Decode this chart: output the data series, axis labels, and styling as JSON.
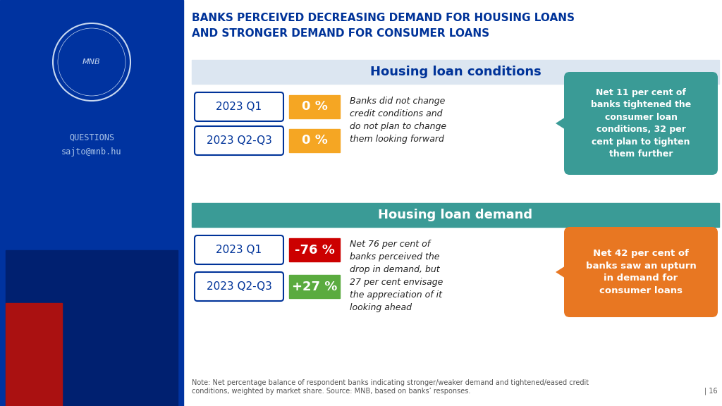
{
  "title_line1": "BANKS PERCEIVED DECREASING DEMAND FOR HOUSING LOANS",
  "title_line2": "AND STRONGER DEMAND FOR CONSUMER LOANS",
  "questions_label": "QUESTIONS",
  "email_label": "sajto@mnb.hu",
  "main_bg": "#ffffff",
  "section1_header": "Housing loan conditions",
  "section1_header_bg": "#dce6f1",
  "section1_header_color": "#003399",
  "section2_header": "Housing loan demand",
  "section2_header_bg": "#3a9b96",
  "section2_header_color": "#ffffff",
  "row1_label": "2023 Q1",
  "row2_label": "2023 Q2-Q3",
  "row3_label": "2023 Q1",
  "row4_label": "2023 Q2-Q3",
  "badge1_text": "0 %",
  "badge2_text": "0 %",
  "badge3_text": "-76 %",
  "badge4_text": "+27 %",
  "badge1_color": "#f5a623",
  "badge2_color": "#f5a623",
  "badge3_color": "#cc0000",
  "badge4_color": "#5aab3f",
  "badge_text_color": "#ffffff",
  "conditions_desc": "Banks did not change\ncredit conditions and\ndo not plan to change\nthem looking forward",
  "demand_desc": "Net 76 per cent of\nbanks perceived the\ndrop in demand, but\n27 per cent envisage\nthe appreciation of it\nlooking ahead",
  "callout1_text": "Net 11 per cent of\nbanks tightened the\nconsumer loan\nconditions, 32 per\ncent plan to tighten\nthem further",
  "callout1_bg": "#3a9b96",
  "callout1_color": "#ffffff",
  "callout2_text": "Net 42 per cent of\nbanks saw an upturn\nin demand for\nconsumer loans",
  "callout2_bg": "#e87722",
  "callout2_color": "#ffffff",
  "footnote": "Note: Net percentage balance of respondent banks indicating stronger/weaker demand and tightened/eased credit\nconditions, weighted by market share. Source: MNB, based on banks’ responses.",
  "page_number": "| 16",
  "title_color": "#003399",
  "title_fontsize": 11,
  "desc_fontsize": 9,
  "callout_fontsize": 9,
  "footnote_fontsize": 7,
  "left_sidebar_color": "#0033a0",
  "left_sidebar_dark": "#002070",
  "logo_circle_color": "#c8d8f0",
  "sidebar_text_color": "#aac4e8"
}
